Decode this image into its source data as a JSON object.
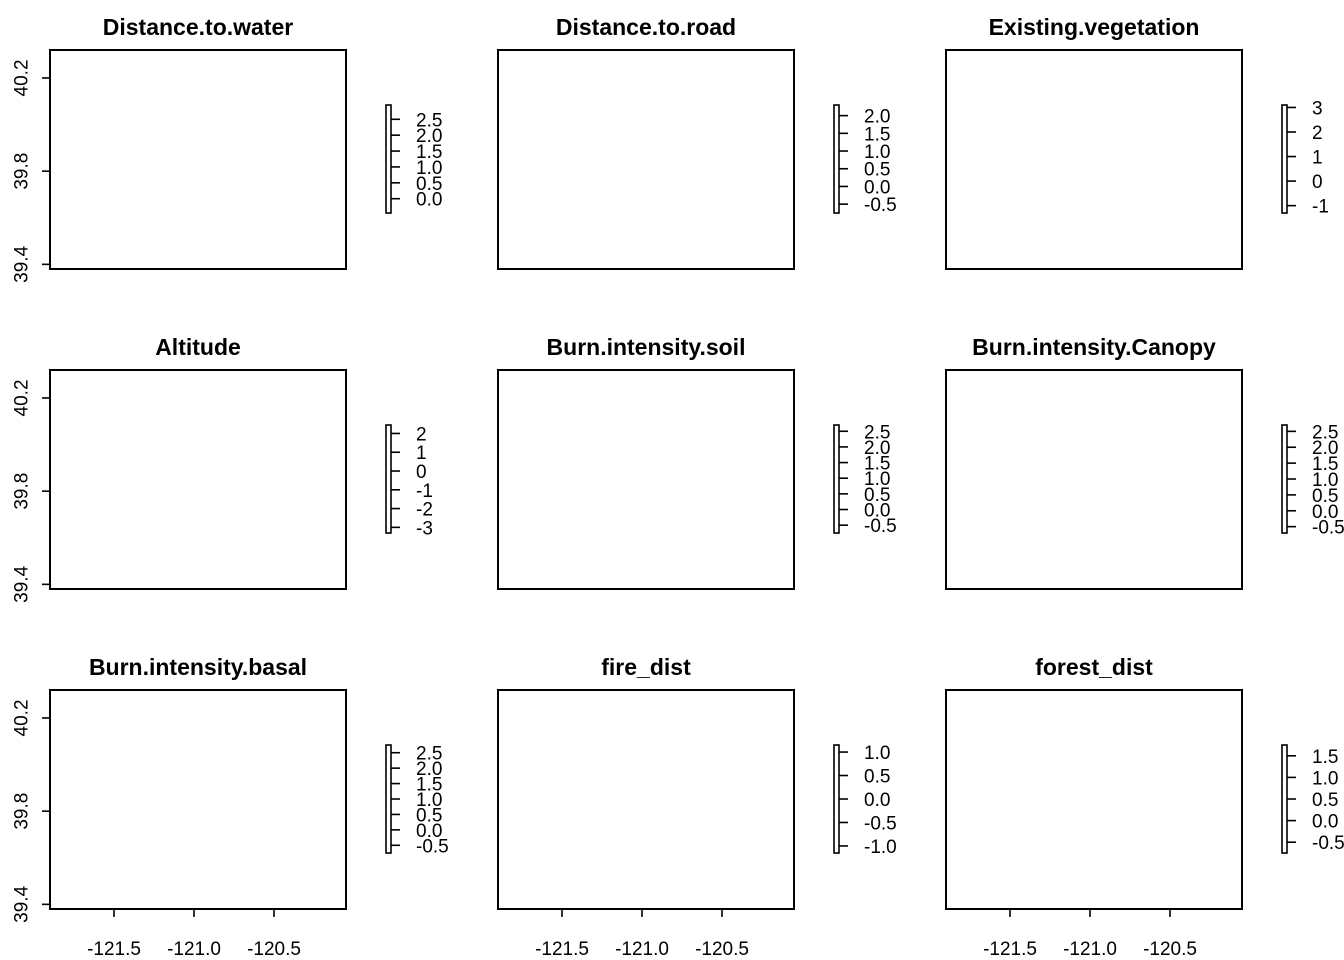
{
  "chart_data": {
    "type": "heatmap",
    "x": {
      "range": [
        -121.9,
        -120.05
      ],
      "ticks": [
        -121.5,
        -121.0,
        -120.5
      ],
      "tick_labels": [
        "-121.5",
        "-121.0",
        "-120.5"
      ]
    },
    "y": {
      "range": [
        39.38,
        40.32
      ],
      "ticks": [
        39.4,
        39.8,
        40.2
      ],
      "tick_labels": [
        "39.4",
        "39.8",
        "40.2"
      ]
    },
    "panels": [
      {
        "title": "Distance.to.water",
        "legend": {
          "range": [
            -0.45,
            2.95
          ],
          "ticks": [
            0.0,
            0.5,
            1.0,
            1.5,
            2.0,
            2.5
          ],
          "labels": [
            "0.0",
            "0.5",
            "1.0",
            "1.5",
            "2.0",
            "2.5"
          ]
        }
      },
      {
        "title": "Distance.to.road",
        "legend": {
          "range": [
            -0.75,
            2.3
          ],
          "ticks": [
            -0.5,
            0.0,
            0.5,
            1.0,
            1.5,
            2.0
          ],
          "labels": [
            "-0.5",
            "0.0",
            "0.5",
            "1.0",
            "1.5",
            "2.0"
          ]
        }
      },
      {
        "title": "Existing.vegetation",
        "legend": {
          "range": [
            -1.3,
            3.1
          ],
          "ticks": [
            -1,
            0,
            1,
            2,
            3
          ],
          "labels": [
            "-1",
            "0",
            "1",
            "2",
            "3"
          ]
        }
      },
      {
        "title": "Altitude",
        "legend": {
          "range": [
            -3.3,
            2.45
          ],
          "ticks": [
            -3,
            -2,
            -1,
            0,
            1,
            2
          ],
          "labels": [
            "-3",
            "-2",
            "-1",
            "0",
            "1",
            "2"
          ]
        }
      },
      {
        "title": "Burn.intensity.soil",
        "legend": {
          "range": [
            -0.75,
            2.7
          ],
          "ticks": [
            -0.5,
            0.0,
            0.5,
            1.0,
            1.5,
            2.0,
            2.5
          ],
          "labels": [
            "-0.5",
            "0.0",
            "0.5",
            "1.0",
            "1.5",
            "2.0",
            "2.5"
          ]
        }
      },
      {
        "title": "Burn.intensity.Canopy",
        "legend": {
          "range": [
            -0.7,
            2.7
          ],
          "ticks": [
            -0.5,
            0.0,
            0.5,
            1.0,
            1.5,
            2.0,
            2.5
          ],
          "labels": [
            "-0.5",
            "0.0",
            "0.5",
            "1.0",
            "1.5",
            "2.0",
            "2.5"
          ]
        }
      },
      {
        "title": "Burn.intensity.basal",
        "legend": {
          "range": [
            -0.75,
            2.75
          ],
          "ticks": [
            -0.5,
            0.0,
            0.5,
            1.0,
            1.5,
            2.0,
            2.5
          ],
          "labels": [
            "-0.5",
            "0.0",
            "0.5",
            "1.0",
            "1.5",
            "2.0",
            "2.5"
          ]
        }
      },
      {
        "title": "fire_dist",
        "legend": {
          "range": [
            -1.15,
            1.15
          ],
          "ticks": [
            -1.0,
            -0.5,
            0.0,
            0.5,
            1.0
          ],
          "labels": [
            "-1.0",
            "-0.5",
            "0.0",
            "0.5",
            "1.0"
          ]
        }
      },
      {
        "title": "forest_dist",
        "legend": {
          "range": [
            -0.75,
            1.75
          ],
          "ticks": [
            -0.5,
            0.0,
            0.5,
            1.0,
            1.5
          ],
          "labels": [
            "-0.5",
            "0.0",
            "0.5",
            "1.0",
            "1.5"
          ]
        }
      }
    ]
  }
}
